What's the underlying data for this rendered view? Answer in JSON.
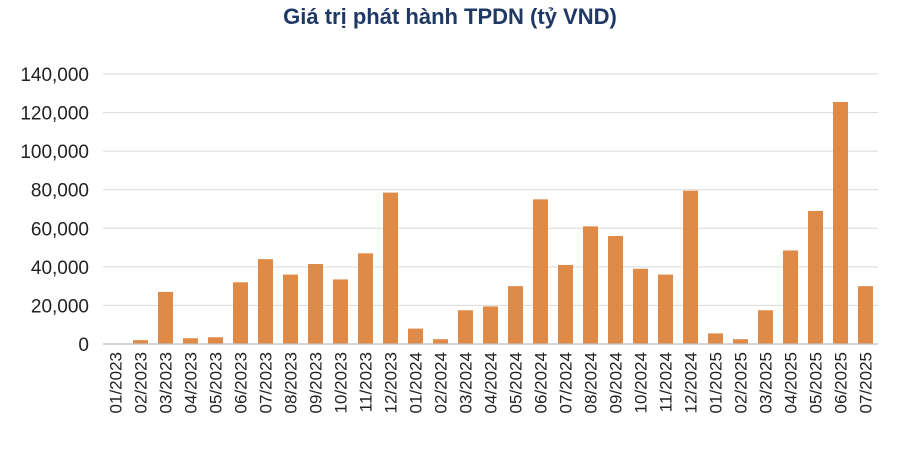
{
  "chart_data": {
    "type": "bar",
    "title": "Giá trị phát hành TPDN (tỷ VND)",
    "xlabel": "",
    "ylabel": "",
    "ylim": [
      0,
      140000
    ],
    "yticks": [
      "0",
      "20,000",
      "40,000",
      "60,000",
      "80,000",
      "100,000",
      "120,000",
      "140,000"
    ],
    "grid": true,
    "bar_color": "#e08a47",
    "categories": [
      "01/2023",
      "02/2023",
      "03/2023",
      "04/2023",
      "05/2023",
      "06/2023",
      "07/2023",
      "08/2023",
      "09/2023",
      "10/2023",
      "11/2023",
      "12/2023",
      "01/2024",
      "02/2024",
      "03/2024",
      "04/2024",
      "05/2024",
      "06/2024",
      "07/2024",
      "08/2024",
      "09/2024",
      "10/2024",
      "11/2024",
      "12/2024",
      "01/2025",
      "02/2025",
      "03/2025",
      "04/2025",
      "05/2025",
      "06/2025",
      "07/2025"
    ],
    "values": [
      0,
      2000,
      27000,
      3000,
      3500,
      32000,
      44000,
      36000,
      41500,
      33500,
      47000,
      78500,
      8000,
      2500,
      17500,
      19500,
      30000,
      75000,
      41000,
      61000,
      56000,
      39000,
      36000,
      79500,
      5500,
      2500,
      17500,
      48500,
      69000,
      125500,
      30000
    ]
  }
}
